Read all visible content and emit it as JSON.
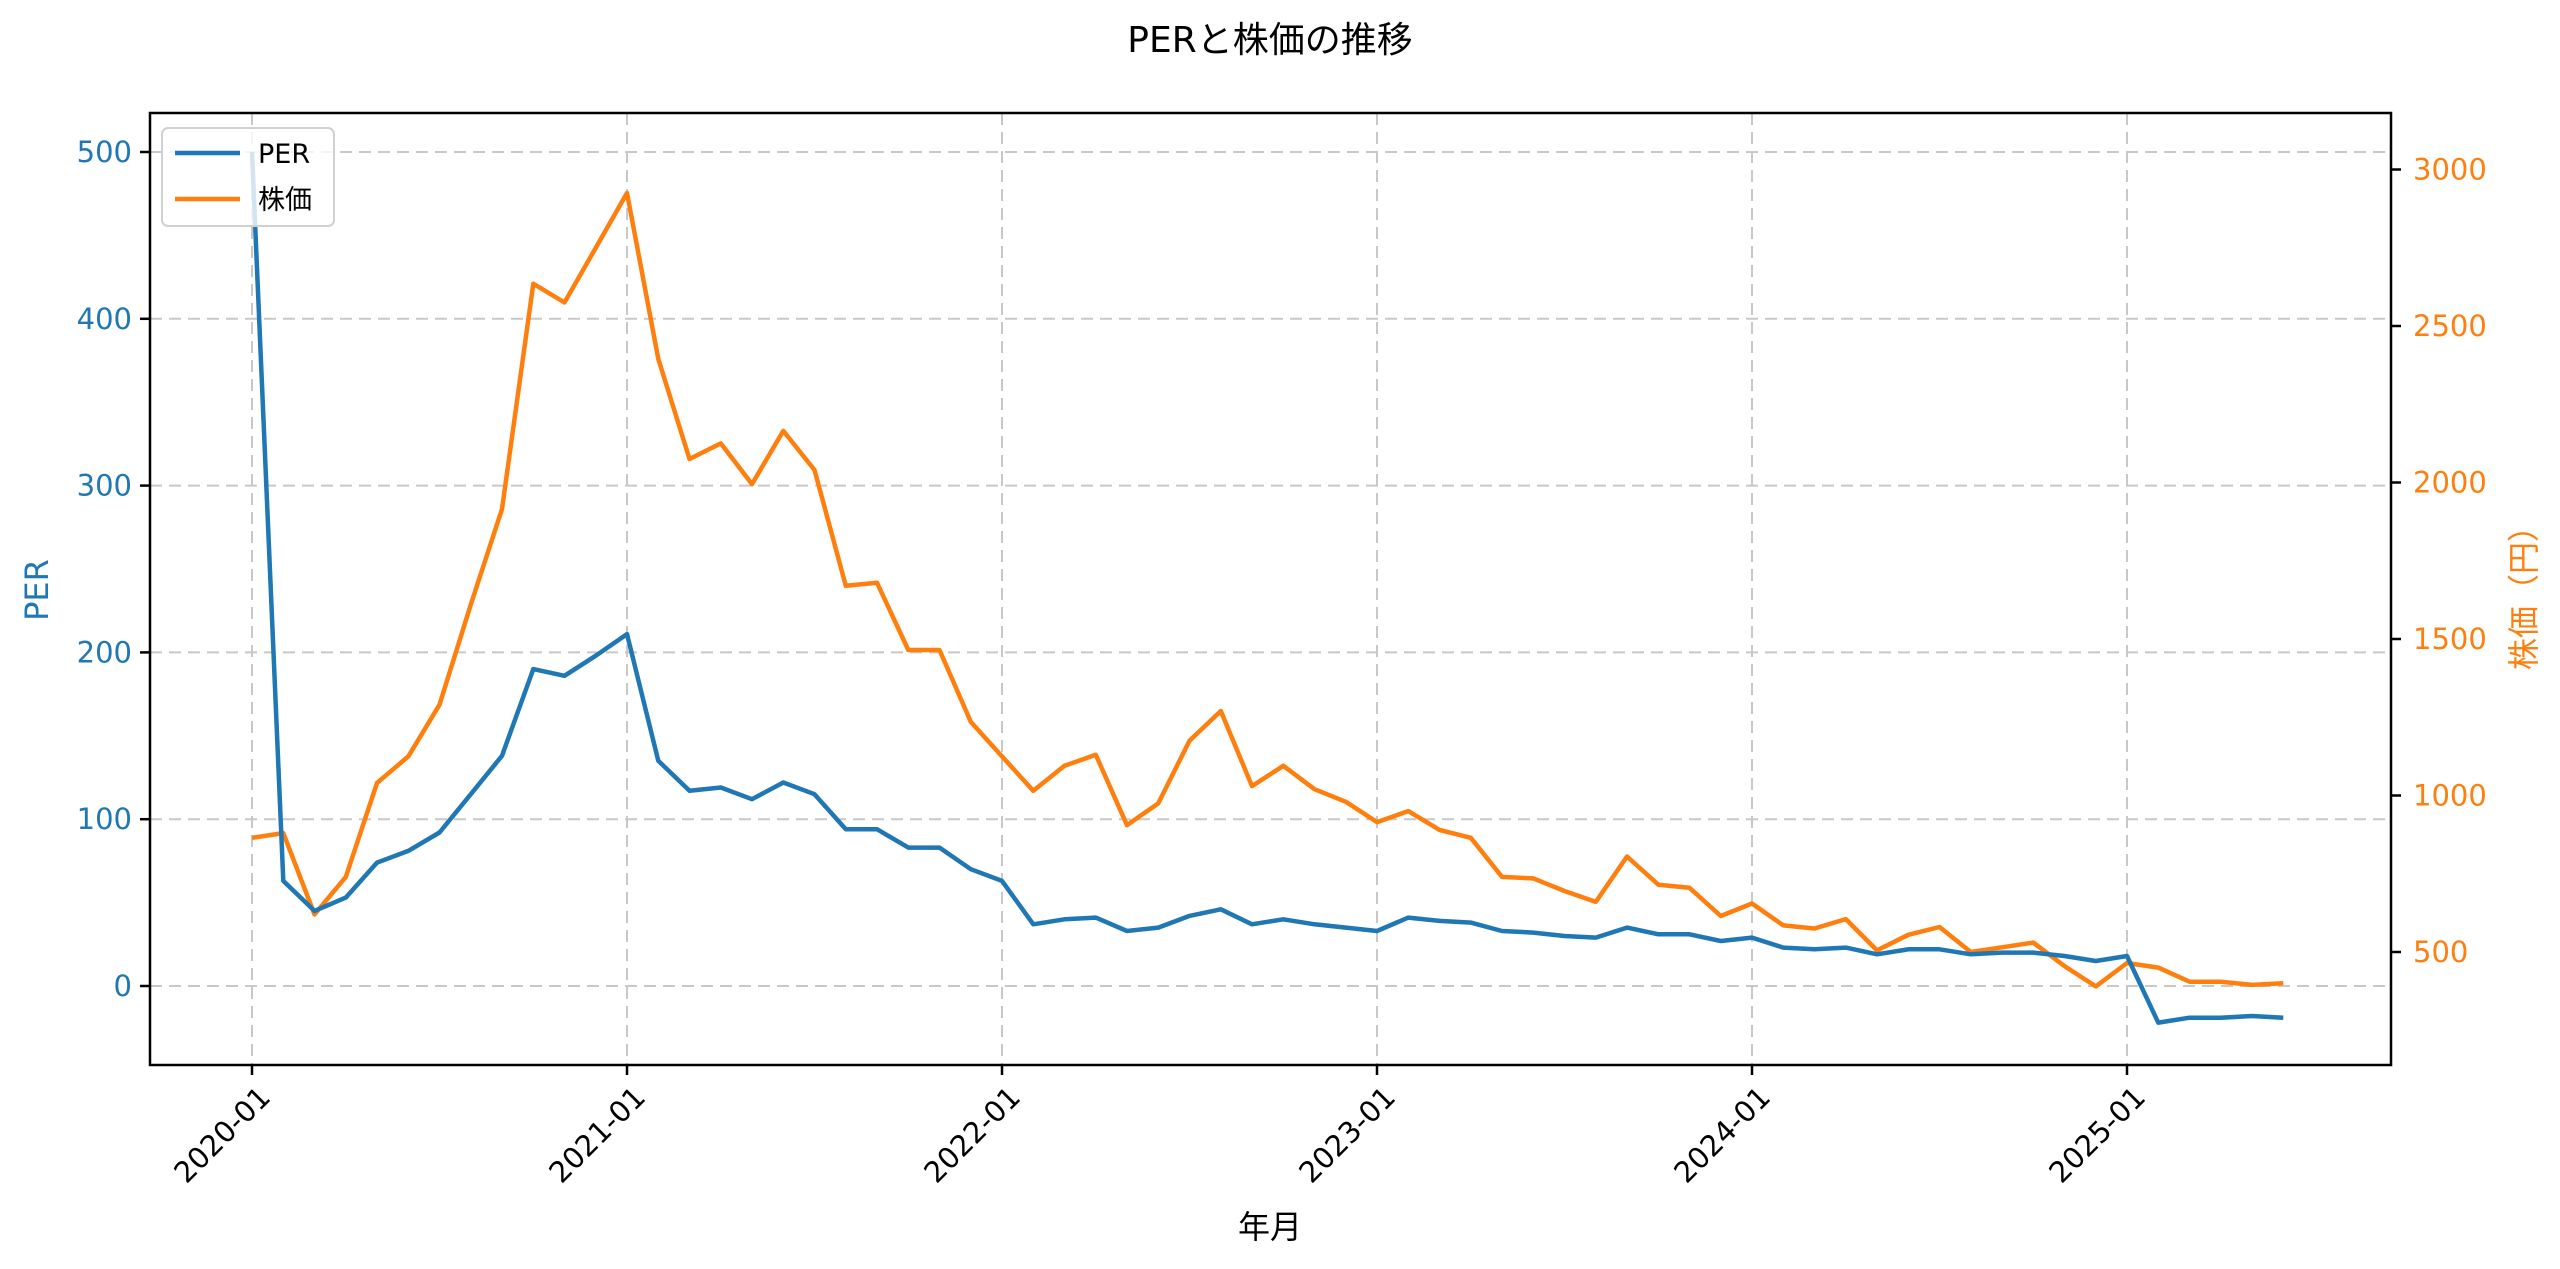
{
  "chart_data": {
    "type": "line",
    "title": "PERと株価の推移",
    "xlabel": "年月",
    "ylabel": "PER",
    "ylabel_right": "株価（円）",
    "x_ticks": [
      "2020-01",
      "2021-01",
      "2022-01",
      "2023-01",
      "2024-01",
      "2025-01"
    ],
    "y_ticks_left": [
      0,
      100,
      200,
      300,
      400,
      500
    ],
    "y_ticks_right": [
      500,
      1000,
      1500,
      2000,
      2500,
      3000
    ],
    "ylim_left": [
      -48,
      523
    ],
    "ylim_right": [
      145,
      3185
    ],
    "grid": true,
    "legend_position": "upper left",
    "x": [
      "2020-01",
      "2020-02",
      "2020-03",
      "2020-04",
      "2020-05",
      "2020-06",
      "2020-07",
      "2020-08",
      "2020-09",
      "2020-10",
      "2020-11",
      "2020-12",
      "2021-01",
      "2021-02",
      "2021-03",
      "2021-04",
      "2021-05",
      "2021-06",
      "2021-07",
      "2021-08",
      "2021-09",
      "2021-10",
      "2021-11",
      "2021-12",
      "2022-01",
      "2022-02",
      "2022-03",
      "2022-04",
      "2022-05",
      "2022-06",
      "2022-07",
      "2022-08",
      "2022-09",
      "2022-10",
      "2022-11",
      "2022-12",
      "2023-01",
      "2023-02",
      "2023-03",
      "2023-04",
      "2023-05",
      "2023-06",
      "2023-07",
      "2023-08",
      "2023-09",
      "2023-10",
      "2023-11",
      "2023-12",
      "2024-01",
      "2024-02",
      "2024-03",
      "2024-04",
      "2024-05",
      "2024-06",
      "2024-07",
      "2024-08",
      "2024-09",
      "2024-10",
      "2024-11",
      "2024-12",
      "2025-01",
      "2025-02",
      "2025-03",
      "2025-04",
      "2025-05",
      "2025-06"
    ],
    "series": [
      {
        "name": "PER",
        "axis": "left",
        "color": "#1f77b4",
        "values": [
          500,
          63,
          45,
          53,
          74,
          81,
          92,
          115,
          138,
          190,
          186,
          198,
          211,
          135,
          117,
          119,
          112,
          122,
          115,
          94,
          94,
          83,
          83,
          70,
          63,
          37,
          40,
          41,
          33,
          35,
          42,
          46,
          37,
          40,
          37,
          35,
          33,
          41,
          39,
          38,
          33,
          32,
          30,
          29,
          35,
          31,
          31,
          27,
          29,
          23,
          22,
          23,
          19,
          22,
          22,
          19,
          20,
          20,
          18,
          15,
          18,
          -22,
          -19,
          -19,
          -18,
          -19
        ]
      },
      {
        "name": "株価",
        "axis": "right",
        "color": "#ff7f0e",
        "values": [
          865,
          880,
          620,
          740,
          1040,
          1125,
          1290,
          1610,
          1915,
          2635,
          2575,
          2750,
          2925,
          2395,
          2075,
          2125,
          1995,
          2165,
          2040,
          1670,
          1680,
          1465,
          1465,
          1235,
          1125,
          1015,
          1095,
          1130,
          905,
          975,
          1175,
          1270,
          1030,
          1095,
          1020,
          980,
          915,
          950,
          890,
          865,
          740,
          735,
          695,
          660,
          805,
          715,
          705,
          615,
          655,
          585,
          575,
          605,
          505,
          555,
          580,
          500,
          515,
          530,
          455,
          390,
          465,
          450,
          405,
          405,
          395,
          400
        ]
      }
    ]
  },
  "labels": {
    "title": "PERと株価の推移",
    "xlabel": "年月",
    "ylabel_left": "PER",
    "ylabel_right": "株価（円）",
    "legend": [
      "PER",
      "株価"
    ],
    "x_ticks": [
      "2020-01",
      "2021-01",
      "2022-01",
      "2023-01",
      "2024-01",
      "2025-01"
    ],
    "y_left": [
      "0",
      "100",
      "200",
      "300",
      "400",
      "500"
    ],
    "y_right": [
      "500",
      "1000",
      "1500",
      "2000",
      "2500",
      "3000"
    ]
  },
  "colors": {
    "per": "#1f77b4",
    "price": "#ff7f0e",
    "grid": "#c8c8c8"
  }
}
